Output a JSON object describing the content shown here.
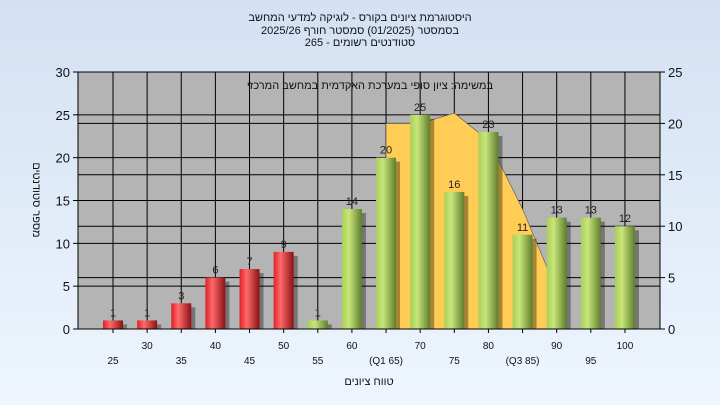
{
  "chart_data": {
    "type": "bar",
    "title": [
      "היסטוגרמת ציונים בקורס - לוגיקה למדעי המחשב",
      "בסמסטר  (01/2025)  סמסטר חורף 2025/26",
      "סטודנטים רשומים - 265"
    ],
    "subtitle": "במשימה: ציון סופי במערכת האקדמית במחשב המרכזי",
    "xlabel": "טווח ציונים",
    "ylabel": "מספר סטודנטים",
    "categories": [
      "25",
      "30",
      "35",
      "40",
      "45",
      "50",
      "55",
      "60",
      "(Q1 65)",
      "70",
      "75",
      "80",
      "(Q3 85)",
      "90",
      "95",
      "100"
    ],
    "values": [
      1,
      1,
      3,
      6,
      7,
      9,
      1,
      14,
      20,
      25,
      16,
      23,
      11,
      13,
      13,
      12
    ],
    "ylim": [
      0,
      30
    ],
    "yticks": [
      "0",
      "5",
      "10",
      "15",
      "20",
      "25",
      "30"
    ],
    "y2lim": [
      0,
      25
    ],
    "y2ticks": [
      "0",
      "5",
      "10",
      "15",
      "20",
      "25"
    ],
    "grid": true,
    "colors": {
      "fail": "#e8222a",
      "pass": "#9cc24a",
      "interquartile_area": "#ffcc55",
      "plot_bg": "#b4b4b4"
    },
    "fail_threshold": 50,
    "interquartile_area": {
      "x": [
        65,
        70,
        75,
        80,
        85,
        90
      ],
      "y": [
        24,
        24,
        25.2,
        22,
        14,
        4.5
      ]
    }
  }
}
